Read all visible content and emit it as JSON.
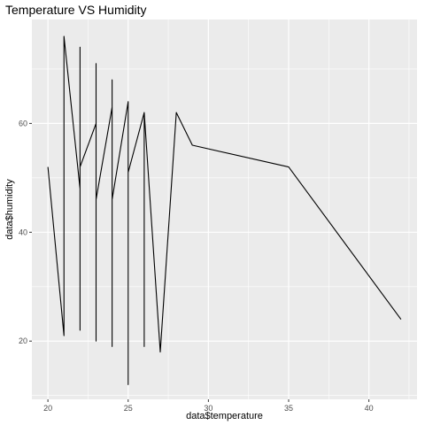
{
  "chart_data": {
    "type": "line",
    "title": "Temperature VS Humidity",
    "xlabel": "data$temperature",
    "ylabel": "data$humidity",
    "xlim": [
      19,
      43
    ],
    "ylim": [
      9.3,
      79.1
    ],
    "x_ticks": [
      20,
      25,
      30,
      35,
      40
    ],
    "y_ticks": [
      20,
      40,
      60
    ],
    "x_tick_labels": [
      "20",
      "25",
      "30",
      "35",
      "40"
    ],
    "y_tick_labels": [
      "20",
      "40",
      "60"
    ],
    "grid": true,
    "legend": "none",
    "series": [
      {
        "color": "#000000",
        "x": [
          20,
          21,
          21,
          21,
          22,
          22,
          22,
          22,
          23,
          23,
          23,
          23,
          24,
          24,
          24,
          24,
          25,
          25,
          25,
          25,
          26,
          26,
          26,
          27,
          28,
          29,
          35,
          42
        ],
        "y": [
          52,
          21,
          53,
          76,
          48,
          22,
          74,
          52,
          60,
          20,
          71,
          46,
          63,
          19,
          68,
          46,
          64,
          12,
          64,
          51,
          62,
          19,
          62,
          18,
          62,
          56,
          52,
          24
        ]
      }
    ]
  },
  "colors": {
    "panel_background": "#ebebeb",
    "grid_major": "#ffffff",
    "line": "#000000",
    "tick_mark": "#333333"
  }
}
